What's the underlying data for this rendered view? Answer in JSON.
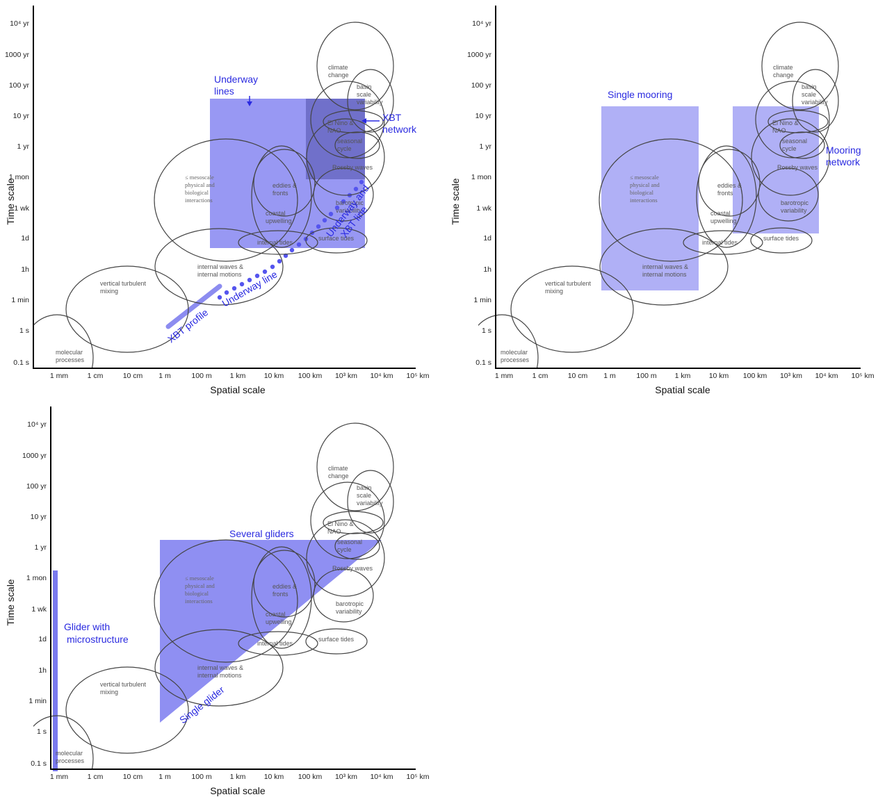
{
  "axes": {
    "x_ticks": [
      "1 mm",
      "1 cm",
      "10 cm",
      "1 m",
      "100 m",
      "1 km",
      "10 km",
      "100 km",
      "10³ km",
      "10⁴ km",
      "10⁵ km"
    ],
    "y_ticks": [
      "10⁴ yr",
      "1000 yr",
      "100 yr",
      "10 yr",
      "1 yr",
      "1 mon",
      "1 wk",
      "1d",
      "1h",
      "1 min",
      "1 s",
      "0.1 s"
    ],
    "x_title": "Spatial scale",
    "y_title": "Time scale"
  },
  "phenomena": {
    "climate_change": [
      "climate",
      "change"
    ],
    "basin_scale": [
      "basin",
      "scale",
      "variability"
    ],
    "el_nino": [
      "El Nino &",
      "NAO"
    ],
    "seasonal": [
      "seasonal",
      "cycle"
    ],
    "rossby": "Rossby waves",
    "barotropic": [
      "barotropic",
      "variability"
    ],
    "eddies": [
      "eddies &",
      "fronts"
    ],
    "coastal": [
      "coastal",
      "upwelling"
    ],
    "mesoscale": [
      "≤ mesoscale",
      "physical and",
      "biological",
      "interactions"
    ],
    "internal_tides": "internal tides",
    "surface_tides": "surface tides",
    "internal_waves": [
      "internal waves &",
      "internal motions"
    ],
    "vertical_mixing": [
      "vertical turbulent",
      "mixing"
    ],
    "molecular": [
      "molecular",
      "processes"
    ]
  },
  "panels": {
    "a": {
      "underway_lines": [
        "Underway",
        "lines"
      ],
      "xbt_network": [
        "XBT",
        "network"
      ],
      "underway_xbt_line": [
        "Underway and",
        "XBT line"
      ],
      "underway_line": "Underway line",
      "xbt_profile": "XBT profile"
    },
    "b": {
      "single_mooring": "Single mooring",
      "mooring_network": [
        "Mooring",
        "network"
      ]
    },
    "c": {
      "several_gliders": "Several gliders",
      "glider_micro": [
        "Glider with",
        "microstructure"
      ],
      "single_glider": "Single glider"
    }
  },
  "colors": {
    "platform_fill": "#7070ee",
    "platform_dark": "#5050c0",
    "label_blue": "#2a2ae0",
    "ellipse_stroke": "#444444"
  }
}
